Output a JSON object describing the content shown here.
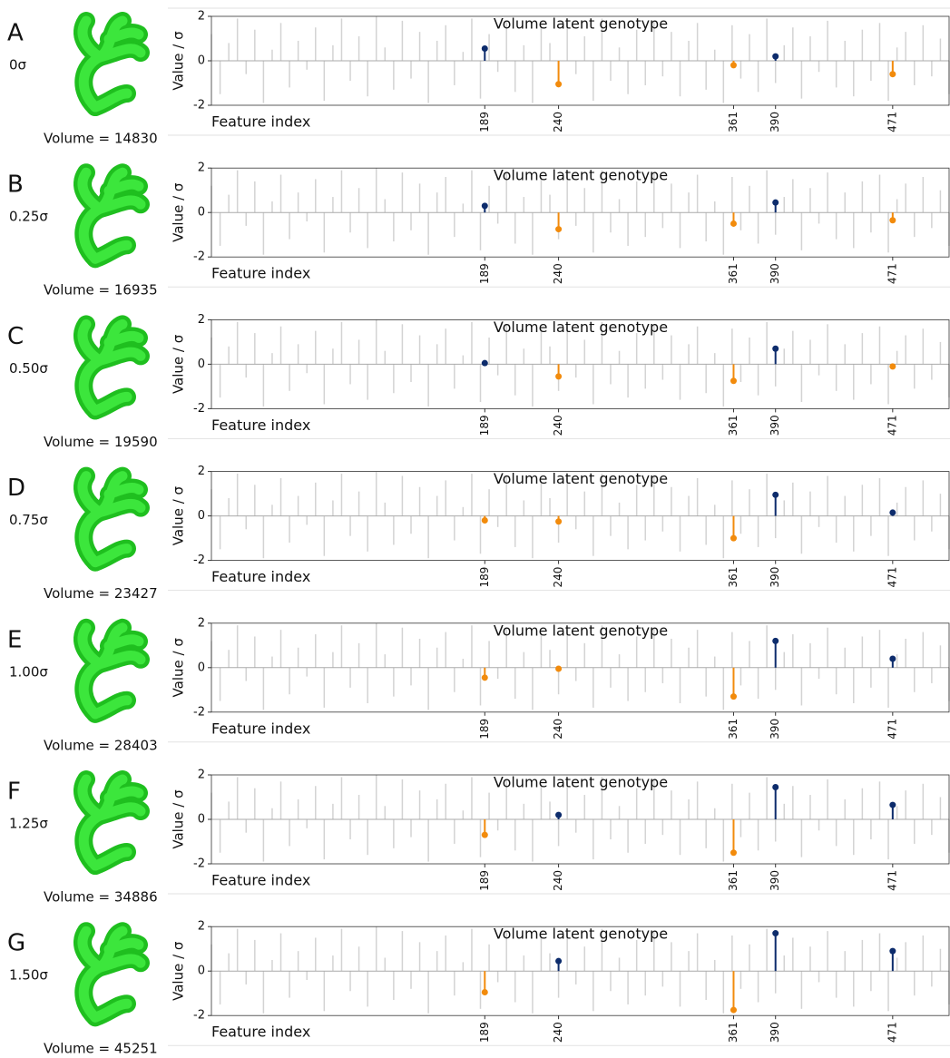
{
  "background": {
    "color": "#d3d3d3",
    "x": [
      0,
      6,
      12,
      18,
      24,
      30,
      36,
      42,
      48,
      54,
      60,
      66,
      72,
      78,
      84,
      90,
      96,
      102,
      108,
      114,
      120,
      126,
      132,
      138,
      144,
      150,
      156,
      162,
      168,
      174,
      180,
      186,
      192,
      198,
      204,
      210,
      216,
      222,
      228,
      234,
      240,
      246,
      252,
      258,
      264,
      270,
      276,
      282,
      288,
      294,
      300,
      306,
      312,
      318,
      324,
      330,
      336,
      342,
      348,
      354,
      360,
      366,
      372,
      378,
      384,
      390,
      396,
      402,
      408,
      414,
      420,
      426,
      432,
      438,
      444,
      450,
      456,
      462,
      468,
      474,
      480,
      486,
      492,
      498,
      504,
      510
    ],
    "values": [
      1.2,
      -1.5,
      0.8,
      1.9,
      -0.6,
      1.4,
      -1.9,
      0.5,
      1.7,
      -1.2,
      0.9,
      -0.4,
      1.5,
      -1.8,
      0.7,
      1.9,
      -0.9,
      1.1,
      -1.6,
      2.0,
      0.6,
      -1.3,
      1.8,
      -0.8,
      1.3,
      -1.9,
      0.9,
      1.6,
      -1.1,
      0.4,
      1.9,
      -1.7,
      1.2,
      -0.5,
      1.8,
      -1.4,
      0.7,
      -1.9,
      1.5,
      0.8,
      -1.2,
      1.7,
      -0.6,
      1.1,
      -1.8,
      1.9,
      -0.9,
      0.6,
      -1.5,
      1.4,
      -1.1,
      1.8,
      -0.7,
      1.3,
      -1.6,
      0.9,
      1.7,
      -1.3,
      0.5,
      -1.9,
      1.6,
      -0.8,
      1.2,
      -1.4,
      1.9,
      -1.0,
      0.7,
      1.5,
      -1.7,
      1.1,
      -0.5,
      1.8,
      -1.2,
      0.9,
      -1.6,
      1.4,
      -0.9,
      1.7,
      -1.8,
      0.6,
      1.3,
      -1.1,
      1.6,
      -0.7,
      1.0,
      -1.5
    ]
  },
  "chart_data": [
    {
      "type": "stem",
      "label": "A",
      "shift": "0σ",
      "volume": "Volume = 14830",
      "title": "Volume latent genotype",
      "y_label": "Value / σ",
      "x_label": "Feature index",
      "xlim": [
        0,
        510
      ],
      "ylim": [
        -2,
        2
      ],
      "yticks": [
        -2,
        0,
        2
      ],
      "xticks": [
        189,
        240,
        361,
        390,
        471
      ],
      "x": [
        189,
        240,
        361,
        390,
        471
      ],
      "values": [
        0.55,
        -1.05,
        -0.2,
        0.2,
        -0.6
      ],
      "positive_color": "#0d2c6c",
      "negative_color": "#f28b0c"
    },
    {
      "type": "stem",
      "label": "B",
      "shift": "0.25σ",
      "volume": "Volume = 16935",
      "title": "Volume latent genotype",
      "y_label": "Value / σ",
      "x_label": "Feature index",
      "xlim": [
        0,
        510
      ],
      "ylim": [
        -2,
        2
      ],
      "yticks": [
        -2,
        0,
        2
      ],
      "xticks": [
        189,
        240,
        361,
        390,
        471
      ],
      "x": [
        189,
        240,
        361,
        390,
        471
      ],
      "values": [
        0.3,
        -0.75,
        -0.5,
        0.45,
        -0.35
      ],
      "positive_color": "#0d2c6c",
      "negative_color": "#f28b0c"
    },
    {
      "type": "stem",
      "label": "C",
      "shift": "0.50σ",
      "volume": "Volume = 19590",
      "title": "Volume latent genotype",
      "y_label": "Value / σ",
      "x_label": "Feature index",
      "xlim": [
        0,
        510
      ],
      "ylim": [
        -2,
        2
      ],
      "yticks": [
        -2,
        0,
        2
      ],
      "xticks": [
        189,
        240,
        361,
        390,
        471
      ],
      "x": [
        189,
        240,
        361,
        390,
        471
      ],
      "values": [
        0.05,
        -0.55,
        -0.75,
        0.7,
        -0.1
      ],
      "positive_color": "#0d2c6c",
      "negative_color": "#f28b0c"
    },
    {
      "type": "stem",
      "label": "D",
      "shift": "0.75σ",
      "volume": "Volume = 23427",
      "title": "Volume latent genotype",
      "y_label": "Value / σ",
      "x_label": "Feature index",
      "xlim": [
        0,
        510
      ],
      "ylim": [
        -2,
        2
      ],
      "yticks": [
        -2,
        0,
        2
      ],
      "xticks": [
        189,
        240,
        361,
        390,
        471
      ],
      "x": [
        189,
        240,
        361,
        390,
        471
      ],
      "values": [
        -0.2,
        -0.25,
        -1.0,
        0.95,
        0.15
      ],
      "positive_color": "#0d2c6c",
      "negative_color": "#f28b0c"
    },
    {
      "type": "stem",
      "label": "E",
      "shift": "1.00σ",
      "volume": "Volume = 28403",
      "title": "Volume latent genotype",
      "y_label": "Value / σ",
      "x_label": "Feature index",
      "xlim": [
        0,
        510
      ],
      "ylim": [
        -2,
        2
      ],
      "yticks": [
        -2,
        0,
        2
      ],
      "xticks": [
        189,
        240,
        361,
        390,
        471
      ],
      "x": [
        189,
        240,
        361,
        390,
        471
      ],
      "values": [
        -0.45,
        -0.05,
        -1.3,
        1.2,
        0.4
      ],
      "positive_color": "#0d2c6c",
      "negative_color": "#f28b0c"
    },
    {
      "type": "stem",
      "label": "F",
      "shift": "1.25σ",
      "volume": "Volume = 34886",
      "title": "Volume latent genotype",
      "y_label": "Value / σ",
      "x_label": "Feature index",
      "xlim": [
        0,
        510
      ],
      "ylim": [
        -2,
        2
      ],
      "yticks": [
        -2,
        0,
        2
      ],
      "xticks": [
        189,
        240,
        361,
        390,
        471
      ],
      "x": [
        189,
        240,
        361,
        390,
        471
      ],
      "values": [
        -0.7,
        0.2,
        -1.5,
        1.45,
        0.65
      ],
      "positive_color": "#0d2c6c",
      "negative_color": "#f28b0c"
    },
    {
      "type": "stem",
      "label": "G",
      "shift": "1.50σ",
      "volume": "Volume = 45251",
      "title": "Volume latent genotype",
      "y_label": "Value / σ",
      "x_label": "Feature index",
      "xlim": [
        0,
        510
      ],
      "ylim": [
        -2,
        2
      ],
      "yticks": [
        -2,
        0,
        2
      ],
      "xticks": [
        189,
        240,
        361,
        390,
        471
      ],
      "x": [
        189,
        240,
        361,
        390,
        471
      ],
      "values": [
        -0.95,
        0.45,
        -1.75,
        1.7,
        0.9
      ],
      "positive_color": "#0d2c6c",
      "negative_color": "#f28b0c"
    }
  ]
}
